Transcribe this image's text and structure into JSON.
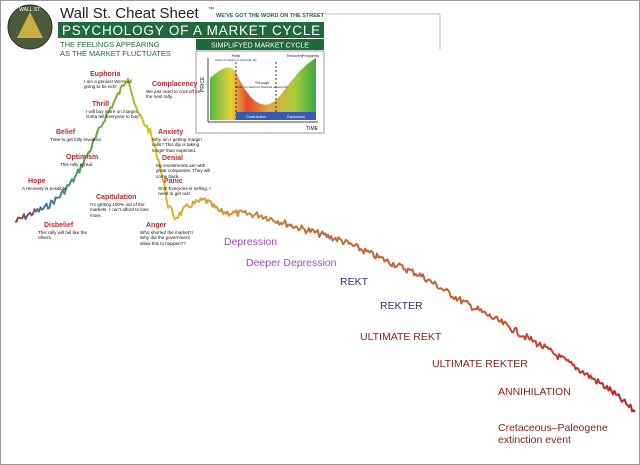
{
  "header": {
    "brand": "Wall St. Cheat Sheet",
    "trademark": "™",
    "tagline": "WE'VE GOT THE WORD ON THE STREET",
    "title": "PSYCHOLOGY OF A MARKET CYCLE",
    "subtitle_lines": [
      "THE FEELINGS APPEARING",
      "AS THE MARKET FLUCTUATES"
    ],
    "logo_text": "WALL ST."
  },
  "inset": {
    "title": "SIMPLIFYED MARKET CYCLE",
    "y_label": "PRICE",
    "x_label": "TIME",
    "peak": "Peak",
    "peak_note": "Point of maximum financial risk",
    "through": "Through",
    "through_note": "Point of maximum financial opportunity",
    "recovery": "Recovery",
    "prosperity": "Prosperity",
    "contraction": "Contraction",
    "expansion": "Expansion"
  },
  "stages": [
    {
      "name": "Hope",
      "text": "A recovery is possible."
    },
    {
      "name": "Disbelief",
      "text": "This rally will fail like the others."
    },
    {
      "name": "Optimism",
      "text": "This rally is real."
    },
    {
      "name": "Belief",
      "text": "Time to get fully invested."
    },
    {
      "name": "Thrill",
      "text": "I will buy more on margin. Gotta tell everyone to buy!"
    },
    {
      "name": "Euphoria",
      "text": "I am a genius! We're all going to be rich!"
    },
    {
      "name": "Complacency",
      "text": "We just need to cool off for the next rally."
    },
    {
      "name": "Anxiety",
      "text": "Why am I getting margin calls? This dip is taking longer than expected."
    },
    {
      "name": "Denial",
      "text": "My investments are with great companies. They will come back."
    },
    {
      "name": "Panic",
      "text": "Shit! Everyone is selling. I need to get out!"
    },
    {
      "name": "Capitulation",
      "text": "I'm getting 100% out of the markets. I can't afford to lose more."
    },
    {
      "name": "Anger",
      "text": "Who shorted the market?! Why did the government allow this to happen??"
    }
  ],
  "extension": [
    {
      "text": "Depression",
      "color": "#a24bc4"
    },
    {
      "text": "Deeper Depression",
      "color": "#a24bc4"
    },
    {
      "text": "REKT",
      "color": "#3b2a7a"
    },
    {
      "text": "REKTER",
      "color": "#3b2a7a"
    },
    {
      "text": "ULTIMATE REKT",
      "color": "#8e1c1c"
    },
    {
      "text": "ULTIMATE REKTER",
      "color": "#8e1c1c"
    },
    {
      "text": "ANNIHILATION",
      "color": "#8e1c1c"
    },
    {
      "text": "Cretaceous–Paleogene extinction event",
      "color": "#8e1c1c"
    }
  ]
}
